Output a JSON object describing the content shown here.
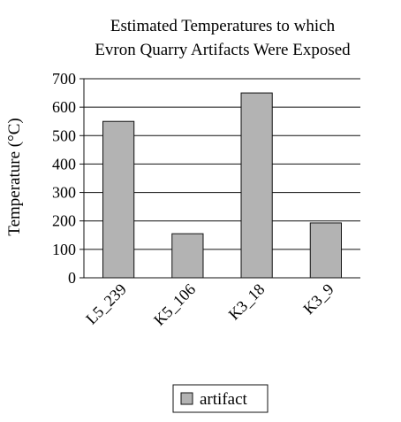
{
  "chart_data": {
    "type": "bar",
    "title_lines": [
      "Estimated Temperatures to which",
      "Evron Quarry Artifacts Were Exposed"
    ],
    "xlabel": "",
    "ylabel": "Temperature (°C)",
    "categories": [
      "L5_239",
      "K5_106",
      "K3_18",
      "K3_9"
    ],
    "series": [
      {
        "name": "artifact",
        "values": [
          550,
          155,
          650,
          193
        ]
      }
    ],
    "ylim": [
      0,
      700
    ],
    "yticks": [
      0,
      100,
      200,
      300,
      400,
      500,
      600,
      700
    ],
    "grid": true,
    "legend_position": "bottom",
    "colors": {
      "bar_fill": "#b3b3b3",
      "bar_stroke": "#111111",
      "grid": "#111111",
      "axis": "#111111"
    }
  }
}
